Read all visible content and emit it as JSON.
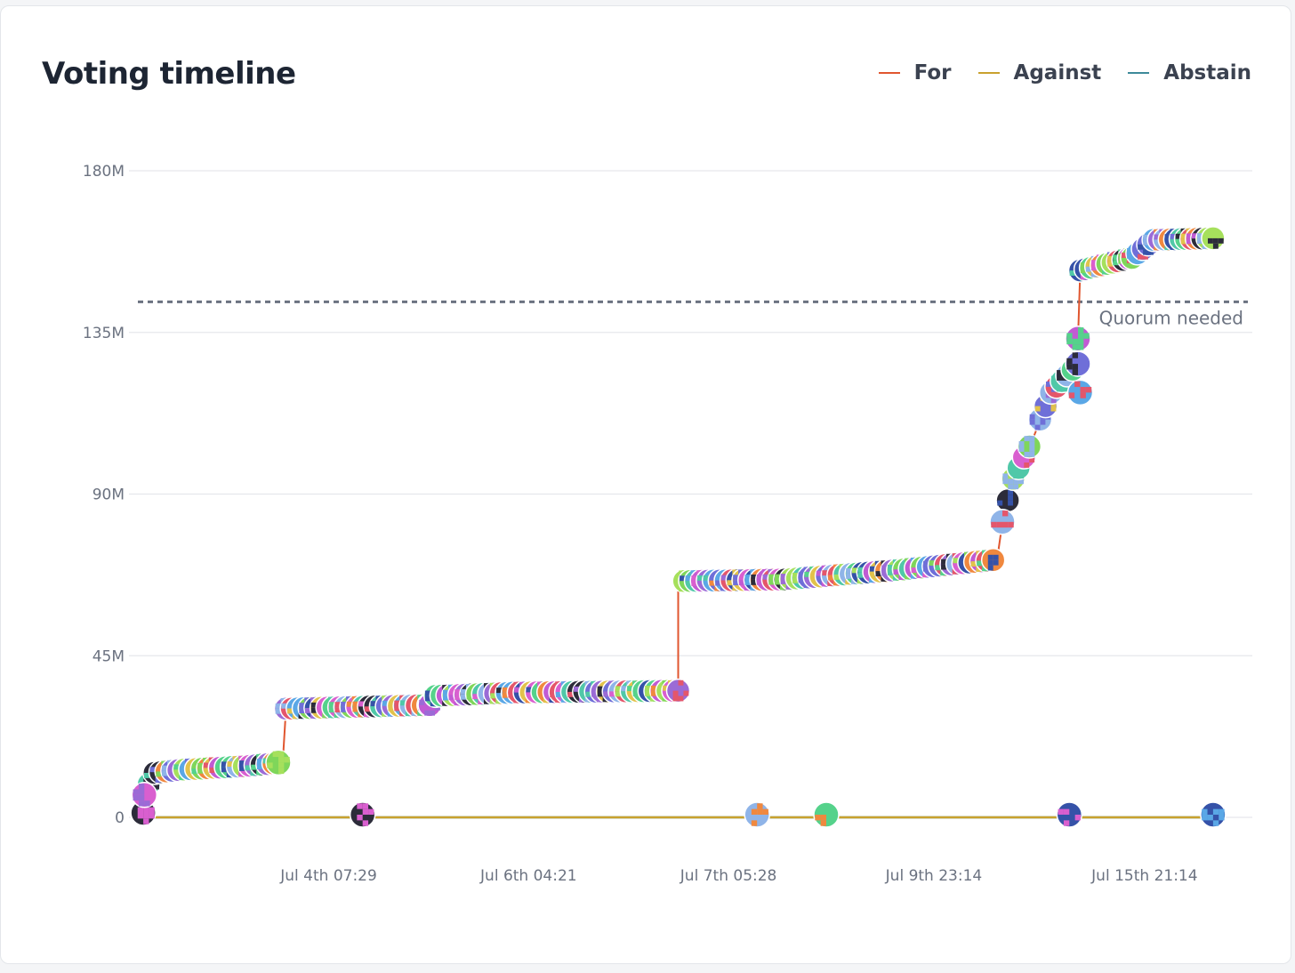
{
  "title": "Voting timeline",
  "legend": [
    {
      "label": "For",
      "color": "#e0562f"
    },
    {
      "label": "Against",
      "color": "#c9a12e"
    },
    {
      "label": "Abstain",
      "color": "#3d8a9a"
    }
  ],
  "quorum_label": "Quorum needed",
  "chart_data": {
    "type": "line",
    "title": "Voting timeline",
    "xlabel": "",
    "ylabel": "",
    "ylim": [
      0,
      180000000
    ],
    "yticks": [
      {
        "value": 0,
        "label": "0"
      },
      {
        "value": 45000000,
        "label": "45M"
      },
      {
        "value": 90000000,
        "label": "90M"
      },
      {
        "value": 135000000,
        "label": "135M"
      },
      {
        "value": 180000000,
        "label": "180M"
      }
    ],
    "xticks": [
      {
        "value": 0.17,
        "label": "Jul 4th 07:29"
      },
      {
        "value": 0.355,
        "label": "Jul 6th 04:21"
      },
      {
        "value": 0.54,
        "label": "Jul 7th 05:28"
      },
      {
        "value": 0.73,
        "label": "Jul 9th 23:14"
      },
      {
        "value": 0.925,
        "label": "Jul 15th 21:14"
      }
    ],
    "quorum": 143500000,
    "grid": true,
    "legend_position": "top-right",
    "series": [
      {
        "name": "For",
        "color": "#e0562f",
        "points": [
          [
            0.0,
            0
          ],
          [
            0.006,
            1000000
          ],
          [
            0.008,
            6000000
          ],
          [
            0.012,
            12000000
          ],
          [
            0.04,
            13000000
          ],
          [
            0.1,
            14000000
          ],
          [
            0.134,
            15000000
          ],
          [
            0.137,
            30000000
          ],
          [
            0.2,
            30500000
          ],
          [
            0.27,
            31000000
          ],
          [
            0.27,
            33500000
          ],
          [
            0.35,
            34500000
          ],
          [
            0.5,
            35000000
          ],
          [
            0.5,
            65500000
          ],
          [
            0.6,
            66000000
          ],
          [
            0.7,
            68500000
          ],
          [
            0.795,
            71500000
          ],
          [
            0.8,
            82000000
          ],
          [
            0.81,
            94000000
          ],
          [
            0.825,
            103000000
          ],
          [
            0.845,
            118000000
          ],
          [
            0.87,
            126000000
          ],
          [
            0.87,
            133000000
          ],
          [
            0.872,
            152000000
          ],
          [
            0.92,
            155500000
          ],
          [
            0.94,
            160500000
          ],
          [
            1.0,
            161000000
          ]
        ]
      },
      {
        "name": "Against",
        "color": "#c9a12e",
        "points": [
          [
            0.0,
            0
          ],
          [
            1.0,
            0
          ]
        ]
      },
      {
        "name": "Abstain",
        "color": "#3d8a9a",
        "points": [
          [
            0.0,
            0
          ],
          [
            1.0,
            0
          ]
        ]
      }
    ],
    "abstain_voters": [
      0.208,
      0.573,
      0.637,
      0.862,
      0.995
    ]
  }
}
